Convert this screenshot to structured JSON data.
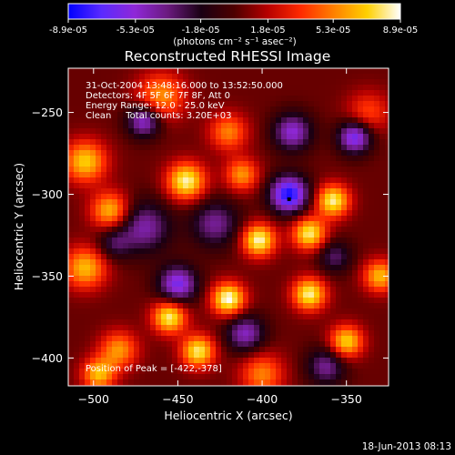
{
  "chart_data": {
    "type": "heatmap",
    "title": "Reconstructed RHESSI Image",
    "colorbar": {
      "ticks": [
        "-8.9e-05",
        "-5.3e-05",
        "-1.8e-05",
        "1.8e-05",
        "5.3e-05",
        "8.9e-05"
      ],
      "unit_label": "(photons cm⁻² s⁻¹ asec⁻²)",
      "vmin": -8.9e-05,
      "vmax": 8.9e-05,
      "palette": [
        "#0000ff",
        "#5a2aff",
        "#8f28d8",
        "#6a1a7e",
        "#1a0013",
        "#4d0000",
        "#b60000",
        "#ff2a00",
        "#ff8000",
        "#ffd000",
        "#ffffff"
      ]
    },
    "xlabel": "Heliocentric X (arcsec)",
    "ylabel": "Heliocentric Y (arcsec)",
    "xlim": [
      -515,
      -325
    ],
    "ylim": [
      -417,
      -223
    ],
    "xticks": [
      -500,
      -450,
      -400,
      -350
    ],
    "yticks": [
      -250,
      -300,
      -350,
      -400
    ],
    "header_lines": [
      "31-Oct-2004 13:48:16.000 to 13:52:50.000",
      "Detectors: 4F 5F 6F 7F 8F, Att 0",
      "Energy Range: 12.0 - 25.0 keV",
      "Clean     Total counts: 3.20E+03"
    ],
    "peak_text": "Position of Peak = [-422,-378]",
    "peak_position": [
      -422,
      -378
    ],
    "marker_position": [
      -384,
      -303
    ],
    "blobs": [
      {
        "x": -455,
        "y": -375,
        "v": 0.88,
        "s": 7
      },
      {
        "x": -420,
        "y": -364,
        "v": 0.96,
        "s": 7
      },
      {
        "x": -438,
        "y": -396,
        "v": 0.85,
        "s": 7
      },
      {
        "x": -445,
        "y": -292,
        "v": 0.9,
        "s": 8
      },
      {
        "x": -402,
        "y": -328,
        "v": 0.92,
        "s": 7
      },
      {
        "x": -372,
        "y": -324,
        "v": 0.86,
        "s": 7
      },
      {
        "x": -358,
        "y": -304,
        "v": 0.88,
        "s": 7
      },
      {
        "x": -372,
        "y": -361,
        "v": 0.88,
        "s": 7
      },
      {
        "x": -350,
        "y": -390,
        "v": 0.78,
        "s": 7
      },
      {
        "x": -330,
        "y": -350,
        "v": 0.7,
        "s": 7
      },
      {
        "x": -505,
        "y": -280,
        "v": 0.75,
        "s": 9
      },
      {
        "x": -490,
        "y": -310,
        "v": 0.72,
        "s": 8
      },
      {
        "x": -505,
        "y": -345,
        "v": 0.7,
        "s": 9
      },
      {
        "x": -485,
        "y": -395,
        "v": 0.6,
        "s": 8
      },
      {
        "x": -497,
        "y": -410,
        "v": 0.7,
        "s": 7
      },
      {
        "x": -460,
        "y": -240,
        "v": 0.6,
        "s": 10
      },
      {
        "x": -420,
        "y": -262,
        "v": 0.55,
        "s": 8
      },
      {
        "x": -412,
        "y": -288,
        "v": 0.6,
        "s": 7
      },
      {
        "x": -400,
        "y": -410,
        "v": 0.55,
        "s": 9
      },
      {
        "x": -337,
        "y": -250,
        "v": 0.4,
        "s": 9
      },
      {
        "x": -470,
        "y": -320,
        "v": -0.55,
        "s": 11
      },
      {
        "x": -450,
        "y": -355,
        "v": -0.75,
        "s": 8
      },
      {
        "x": -384,
        "y": -300,
        "v": -1.0,
        "s": 8
      },
      {
        "x": -470,
        "y": -255,
        "v": -0.7,
        "s": 7
      },
      {
        "x": -345,
        "y": -265,
        "v": -0.8,
        "s": 7
      },
      {
        "x": -382,
        "y": -262,
        "v": -0.65,
        "s": 8
      },
      {
        "x": -410,
        "y": -385,
        "v": -0.6,
        "s": 8
      },
      {
        "x": -362,
        "y": -405,
        "v": -0.5,
        "s": 8
      },
      {
        "x": -488,
        "y": -330,
        "v": -0.35,
        "s": 7
      },
      {
        "x": -428,
        "y": -318,
        "v": -0.5,
        "s": 10
      },
      {
        "x": -357,
        "y": -338,
        "v": -0.4,
        "s": 7
      }
    ]
  },
  "footer": {
    "timestamp": "18-Jun-2013 08:13"
  }
}
